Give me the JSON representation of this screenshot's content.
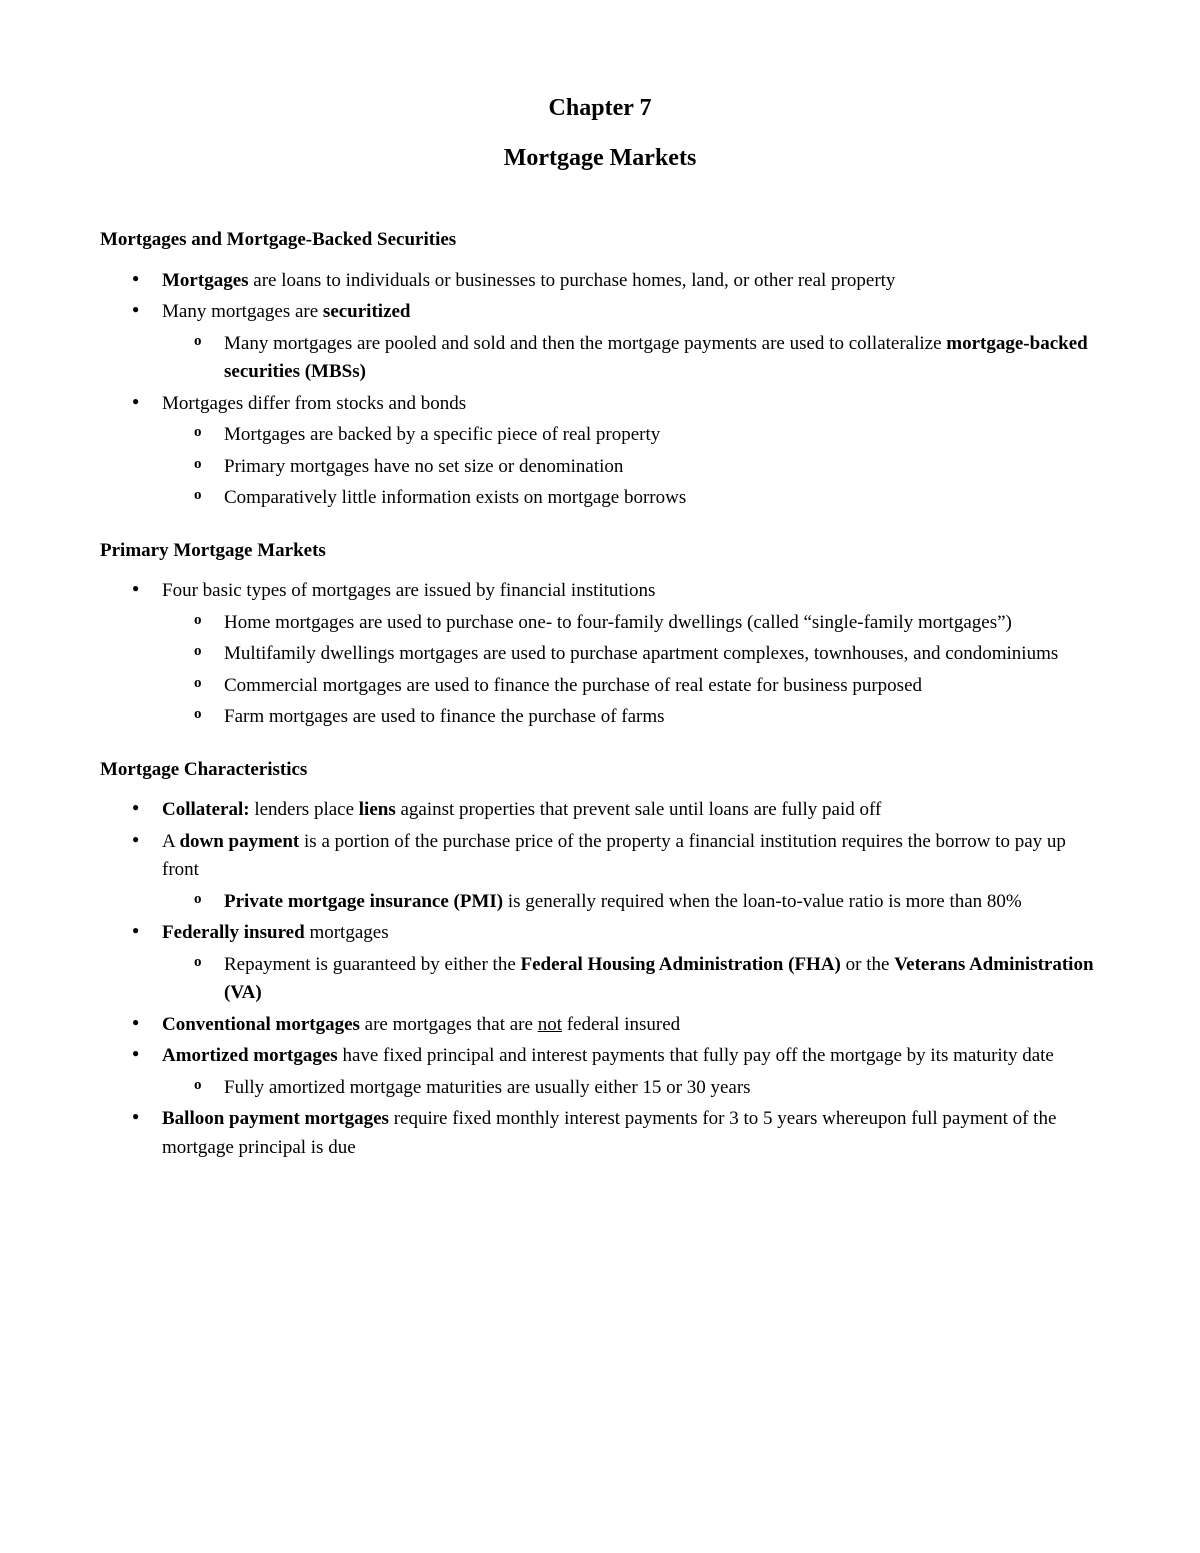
{
  "chapter_title": "Chapter 7",
  "chapter_subtitle": "Mortgage Markets",
  "section1": {
    "heading": "Mortgages and Mortgage-Backed Securities",
    "li1_b1": "Mortgages",
    "li1_t1": " are loans to individuals or businesses to purchase homes, land, or other real property",
    "li2_t1": "Many mortgages are ",
    "li2_b1": "securitized",
    "li2_s1_t1": "Many mortgages are pooled and sold and then the mortgage payments are used to collateralize ",
    "li2_s1_b1": "mortgage-backed securities (MBSs)",
    "li3_t1": "Mortgages differ from stocks and bonds",
    "li3_s1": "Mortgages are backed by a specific piece of real property",
    "li3_s2": "Primary mortgages have no set size or denomination",
    "li3_s3": "Comparatively little information exists on mortgage borrows"
  },
  "section2": {
    "heading": "Primary Mortgage Markets",
    "li1_t1": "Four basic types of mortgages are issued by financial institutions",
    "li1_s1": "Home mortgages are used to purchase one- to four-family dwellings (called “single-family mortgages”)",
    "li1_s2": "Multifamily dwellings mortgages are used to purchase apartment complexes, townhouses, and condominiums",
    "li1_s3": "Commercial mortgages are used to finance the purchase of real estate for business purposed",
    "li1_s4": "Farm mortgages are used to finance the purchase of farms"
  },
  "section3": {
    "heading": "Mortgage Characteristics",
    "li1_b1": "Collateral:",
    "li1_t1": " lenders place ",
    "li1_b2": "liens",
    "li1_t2": " against properties that prevent sale until loans are fully paid off",
    "li2_t1": "A ",
    "li2_b1": "down payment",
    "li2_t2": " is a portion of the purchase price of the property a financial institution requires the borrow to pay up front",
    "li2_s1_b1": "Private mortgage insurance (PMI)",
    "li2_s1_t1": " is generally required when the loan-to-value ratio is more than 80%",
    "li3_b1": "Federally insured",
    "li3_t1": " mortgages",
    "li3_s1_t1": "Repayment is guaranteed by either the ",
    "li3_s1_b1": "Federal Housing Administration (FHA)",
    "li3_s1_t2": " or the ",
    "li3_s1_b2": "Veterans Administration (VA)",
    "li4_b1": "Conventional mortgages",
    "li4_t1": " are mortgages that are ",
    "li4_u1": "not",
    "li4_t2": " federal insured",
    "li5_b1": "Amortized mortgages",
    "li5_t1": " have fixed principal and interest payments that fully pay off the mortgage by its maturity date",
    "li5_s1": "Fully amortized mortgage maturities are usually either 15 or 30 years",
    "li6_b1": "Balloon payment mortgages",
    "li6_t1": " require fixed monthly interest payments for 3 to 5 years whereupon full payment of the mortgage principal is due"
  }
}
